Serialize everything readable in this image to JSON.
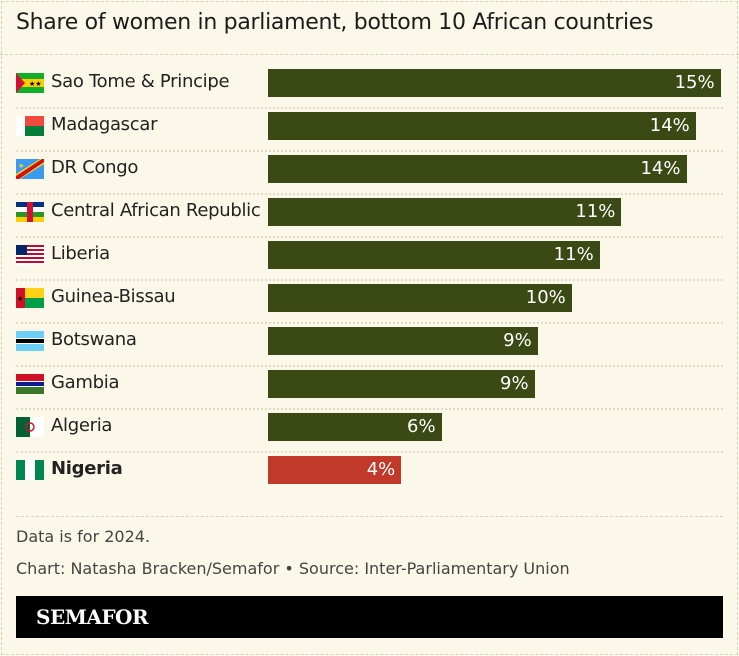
{
  "title": "Share of women in parliament, bottom 10 African countries",
  "chart_data": {
    "type": "bar",
    "orientation": "horizontal",
    "title": "Share of women in parliament, bottom 10 African countries",
    "categories": [
      "Sao Tome & Principe",
      "Madagascar",
      "DR Congo",
      "Central African Republic",
      "Liberia",
      "Guinea-Bissau",
      "Botswana",
      "Gambia",
      "Algeria",
      "Nigeria"
    ],
    "values": [
      14.6,
      13.8,
      13.5,
      11.4,
      10.7,
      9.8,
      8.7,
      8.6,
      5.6,
      4.3
    ],
    "labels": [
      "15%",
      "14%",
      "14%",
      "11%",
      "11%",
      "10%",
      "9%",
      "9%",
      "6%",
      "4%"
    ],
    "highlight": "Nigeria",
    "colors": {
      "default": "#3b4a14",
      "highlight": "#c0392b"
    },
    "grid": false,
    "legend": "none"
  },
  "footer": {
    "note": "Data is for 2024.",
    "credit": "Chart: Natasha Bracken/Semafor • Source: Inter-Parliamentary Union"
  },
  "brand": "SEMAFOR"
}
